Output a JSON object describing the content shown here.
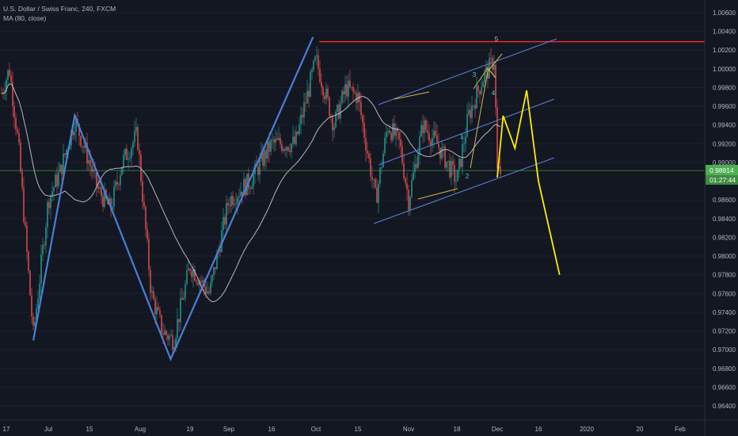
{
  "header": {
    "symbol_line": "U.S. Dollar / Swiss Franc, 240, FXCM",
    "indicator_line": "MA (80, close)"
  },
  "colors": {
    "background": "#131722",
    "bull": "#26a69a",
    "bear": "#ef5350",
    "ma": "#d1d4dc",
    "elliott_line": "#4a7fd6",
    "channel": "#5b7fd0",
    "forecast": "#ffee00",
    "resistance": "#ff2b2b",
    "price_line": "#4caf50",
    "axis_text": "#b2b5be"
  },
  "chart_data": {
    "type": "candlestick",
    "symbol": "U.S. Dollar / Swiss Franc",
    "timeframe": "240",
    "source": "FXCM",
    "indicator": "MA (80, close)",
    "y_axis_ticks": [
      "1.00600",
      "1.00400",
      "1.00200",
      "1.00000",
      "0.99800",
      "0.99600",
      "0.99400",
      "0.99200",
      "0.99000",
      "0.98600",
      "0.98400",
      "0.98200",
      "0.98000",
      "0.97800",
      "0.97600",
      "0.97400",
      "0.97200",
      "0.97000",
      "0.96800",
      "0.96600",
      "0.96400"
    ],
    "x_axis_ticks": [
      "17",
      "Jul",
      "15",
      "Aug",
      "19",
      "Sep",
      "16",
      "Oct",
      "15",
      "Nov",
      "18",
      "Dec",
      "16",
      "2020",
      "20",
      "Feb"
    ],
    "current_price": "0.98914",
    "countdown": "01:27:44",
    "resistance_level": 1.0029,
    "ylim": [
      0.9625,
      1.0072
    ],
    "wave_labels": [
      "5",
      "3",
      "4",
      "1",
      "2"
    ],
    "zigzag_points": [
      {
        "date": "2019-06-26",
        "price": 0.971
      },
      {
        "date": "2019-07-10",
        "price": 0.995
      },
      {
        "date": "2019-08-12",
        "price": 0.969
      },
      {
        "date": "2019-09-30",
        "price": 1.0034
      }
    ],
    "forecast_points": [
      {
        "date": "2019-12-02",
        "price": 0.9884
      },
      {
        "date": "2019-12-04",
        "price": 0.995
      },
      {
        "date": "2019-12-08",
        "price": 0.9915
      },
      {
        "date": "2019-12-12",
        "price": 0.9977
      },
      {
        "date": "2019-12-16",
        "price": 0.988
      },
      {
        "date": "2019-12-23",
        "price": 0.978
      }
    ]
  }
}
